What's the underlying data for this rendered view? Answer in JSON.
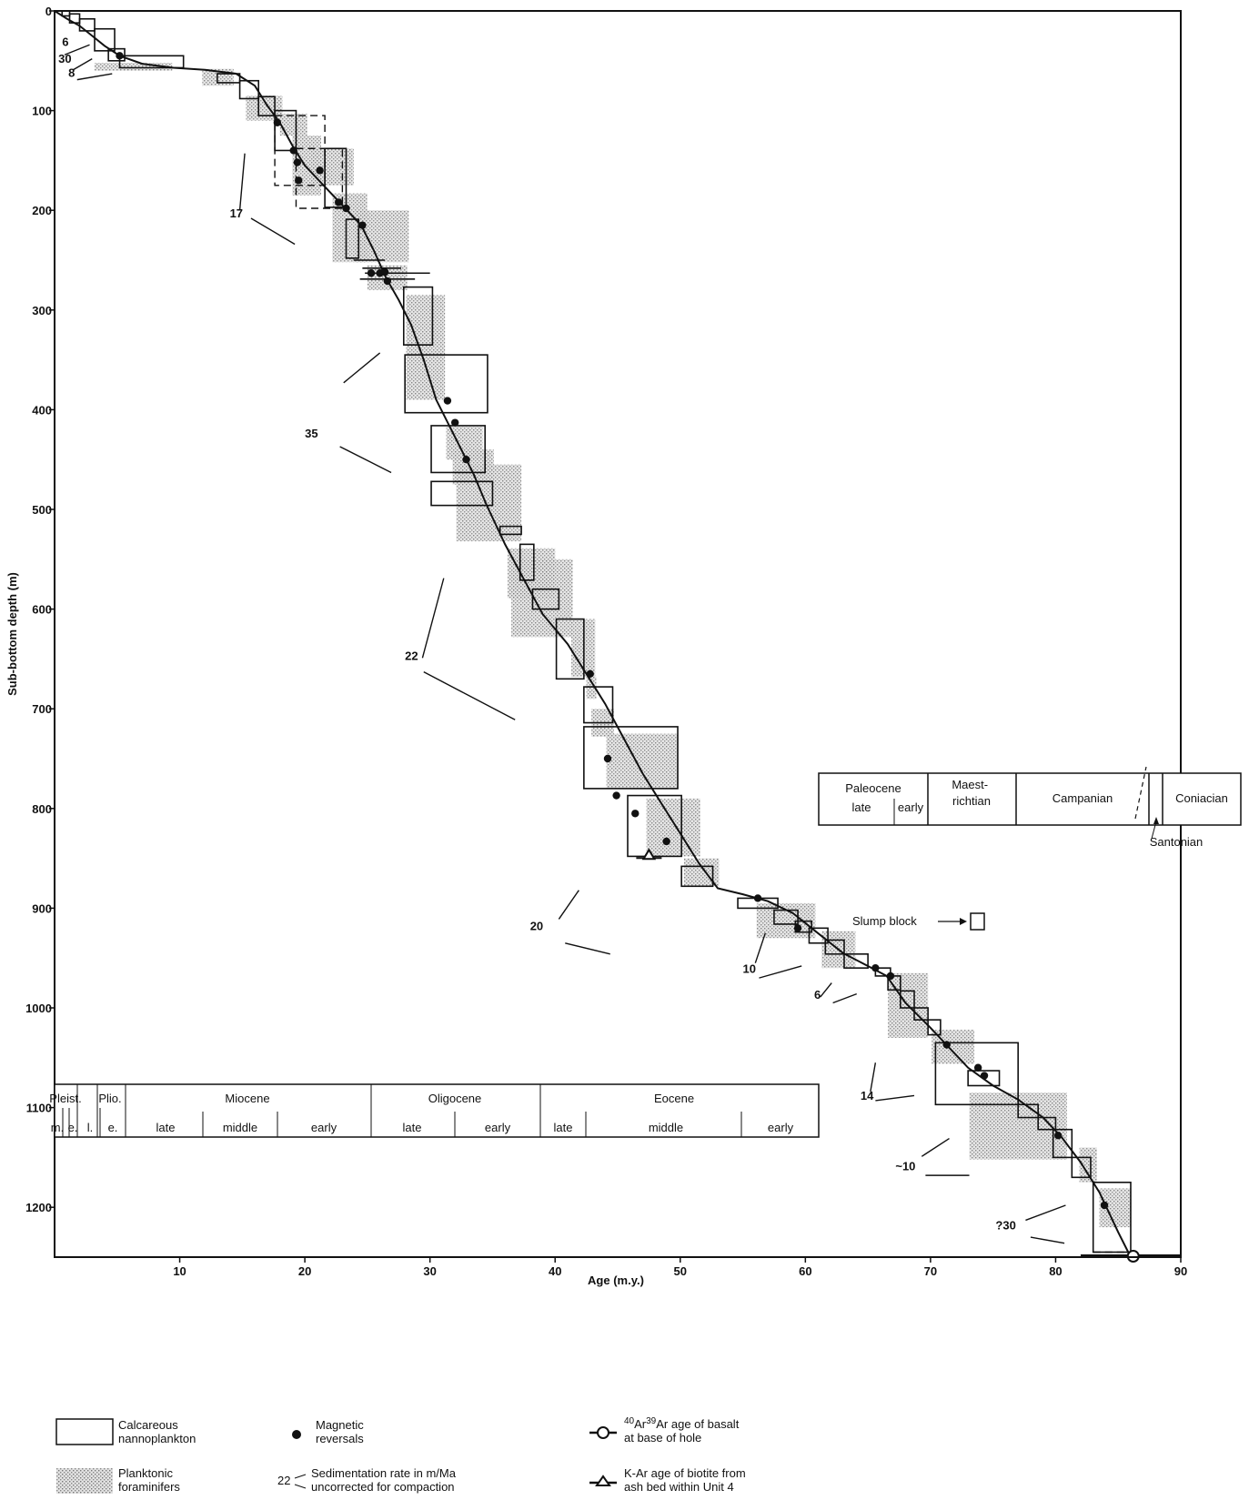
{
  "chart_data": {
    "type": "line",
    "xlabel": "Age (m.y.)",
    "ylabel": "Sub-bottom depth (m)",
    "xlim": [
      0,
      90
    ],
    "ylim": [
      1250,
      0
    ],
    "x_ticks": [
      10,
      20,
      30,
      40,
      50,
      60,
      70,
      80,
      90
    ],
    "y_ticks": [
      0,
      100,
      200,
      300,
      400,
      500,
      600,
      700,
      800,
      900,
      1000,
      1100,
      1200
    ],
    "grid": false,
    "age_depth_curve": [
      [
        0,
        0
      ],
      [
        1,
        8
      ],
      [
        2,
        15
      ],
      [
        3,
        25
      ],
      [
        4,
        35
      ],
      [
        5.2,
        45
      ],
      [
        7,
        53
      ],
      [
        9.5,
        57
      ],
      [
        12,
        59
      ],
      [
        14.5,
        63
      ],
      [
        16,
        75
      ],
      [
        17,
        95
      ],
      [
        18,
        112
      ],
      [
        19,
        135
      ],
      [
        20,
        155
      ],
      [
        21.5,
        175
      ],
      [
        23,
        195
      ],
      [
        24.5,
        215
      ],
      [
        25.5,
        240
      ],
      [
        26.5,
        268
      ],
      [
        27.5,
        290
      ],
      [
        28.5,
        315
      ],
      [
        29.5,
        350
      ],
      [
        30.5,
        390
      ],
      [
        31.5,
        415
      ],
      [
        32.5,
        440
      ],
      [
        33.5,
        465
      ],
      [
        34.5,
        495
      ],
      [
        36,
        535
      ],
      [
        37.5,
        570
      ],
      [
        39,
        605
      ],
      [
        41,
        635
      ],
      [
        42.5,
        665
      ],
      [
        44,
        695
      ],
      [
        45.5,
        730
      ],
      [
        47,
        765
      ],
      [
        48.5,
        795
      ],
      [
        50,
        825
      ],
      [
        51.5,
        855
      ],
      [
        53,
        880
      ],
      [
        55,
        886
      ],
      [
        57,
        893
      ],
      [
        59,
        905
      ],
      [
        61,
        925
      ],
      [
        63,
        945
      ],
      [
        65,
        958
      ],
      [
        66.5,
        968
      ],
      [
        68,
        995
      ],
      [
        70,
        1020
      ],
      [
        71.5,
        1040
      ],
      [
        73,
        1060
      ],
      [
        75,
        1078
      ],
      [
        77,
        1092
      ],
      [
        79,
        1110
      ],
      [
        80.5,
        1130
      ],
      [
        82,
        1155
      ],
      [
        83.5,
        1185
      ],
      [
        85,
        1225
      ],
      [
        86,
        1250
      ]
    ],
    "nannoplankton_boxes": [
      {
        "age": [
          0.6,
          1.2
        ],
        "depth": [
          0,
          5
        ]
      },
      {
        "age": [
          1.2,
          2.0
        ],
        "depth": [
          3,
          12
        ]
      },
      {
        "age": [
          2.0,
          3.2
        ],
        "depth": [
          8,
          20
        ]
      },
      {
        "age": [
          3.2,
          4.8
        ],
        "depth": [
          18,
          40
        ]
      },
      {
        "age": [
          5.2,
          10.3
        ],
        "depth": [
          45,
          57
        ]
      },
      {
        "age": [
          4.3,
          5.6
        ],
        "depth": [
          38,
          50
        ]
      },
      {
        "age": [
          13,
          14.8
        ],
        "depth": [
          63,
          72
        ]
      },
      {
        "age": [
          14.8,
          16.3
        ],
        "depth": [
          70,
          88
        ]
      },
      {
        "age": [
          16.3,
          17.6
        ],
        "depth": [
          86,
          105
        ]
      },
      {
        "age": [
          17.6,
          19.3
        ],
        "depth": [
          100,
          140
        ]
      },
      {
        "age": [
          21.6,
          23.3
        ],
        "depth": [
          138,
          197
        ]
      },
      {
        "age": [
          23.3,
          24.3
        ],
        "depth": [
          209,
          248
        ]
      },
      {
        "age": [
          27.9,
          30.2
        ],
        "depth": [
          277,
          335
        ]
      },
      {
        "age": [
          28,
          34.6
        ],
        "depth": [
          345,
          403
        ]
      },
      {
        "age": [
          30.1,
          34.4
        ],
        "depth": [
          416,
          463
        ]
      },
      {
        "age": [
          30.1,
          35
        ],
        "depth": [
          472,
          496
        ]
      },
      {
        "age": [
          35.6,
          37.3
        ],
        "depth": [
          517,
          525
        ]
      },
      {
        "age": [
          37.2,
          38.3
        ],
        "depth": [
          535,
          571
        ]
      },
      {
        "age": [
          38.2,
          40.3
        ],
        "depth": [
          580,
          600
        ]
      },
      {
        "age": [
          40.1,
          42.3
        ],
        "depth": [
          610,
          670
        ]
      },
      {
        "age": [
          42.3,
          44.6
        ],
        "depth": [
          678,
          714
        ]
      },
      {
        "age": [
          42.3,
          49.8
        ],
        "depth": [
          718,
          780
        ]
      },
      {
        "age": [
          45.8,
          50.1
        ],
        "depth": [
          787,
          848
        ]
      },
      {
        "age": [
          50.1,
          52.6
        ],
        "depth": [
          858,
          878
        ]
      },
      {
        "age": [
          54.6,
          57.8
        ],
        "depth": [
          890,
          900
        ]
      },
      {
        "age": [
          57.5,
          59.4
        ],
        "depth": [
          902,
          916
        ]
      },
      {
        "age": [
          59.2,
          60.5
        ],
        "depth": [
          913,
          924
        ]
      },
      {
        "age": [
          60.3,
          61.8
        ],
        "depth": [
          920,
          935
        ]
      },
      {
        "age": [
          61.6,
          63.1
        ],
        "depth": [
          932,
          946
        ]
      },
      {
        "age": [
          63.1,
          65
        ],
        "depth": [
          946,
          960
        ]
      },
      {
        "age": [
          65.6,
          66.8
        ],
        "depth": [
          960,
          968
        ]
      },
      {
        "age": [
          66.6,
          67.6
        ],
        "depth": [
          968,
          982
        ]
      },
      {
        "age": [
          67.6,
          68.7
        ],
        "depth": [
          983,
          1000
        ]
      },
      {
        "age": [
          68.7,
          69.8
        ],
        "depth": [
          1000,
          1012
        ]
      },
      {
        "age": [
          69.8,
          70.8
        ],
        "depth": [
          1012,
          1027
        ]
      },
      {
        "age": [
          70.4,
          77
        ],
        "depth": [
          1035,
          1097
        ]
      },
      {
        "age": [
          77,
          78.6
        ],
        "depth": [
          1097,
          1110
        ]
      },
      {
        "age": [
          78.6,
          80
        ],
        "depth": [
          1110,
          1122
        ]
      },
      {
        "age": [
          79.8,
          81.3
        ],
        "depth": [
          1122,
          1150
        ]
      },
      {
        "age": [
          81.3,
          82.8
        ],
        "depth": [
          1150,
          1170
        ]
      },
      {
        "age": [
          83.0,
          86.0
        ],
        "depth": [
          1175,
          1245
        ]
      },
      {
        "age": [
          73,
          75.5
        ],
        "depth": [
          1063,
          1078
        ]
      }
    ],
    "dashed_boxes": [
      {
        "age": [
          17.6,
          21.6
        ],
        "depth": [
          105,
          175
        ]
      },
      {
        "age": [
          19.3,
          23.0
        ],
        "depth": [
          138,
          198
        ]
      },
      {
        "age": [
          83.0,
          86.0
        ],
        "depth": [
          1245,
          1245
        ]
      }
    ],
    "foraminifer_boxes": [
      {
        "age": [
          3.2,
          9.4
        ],
        "depth": [
          52,
          60
        ]
      },
      {
        "age": [
          11.8,
          14.3
        ],
        "depth": [
          58,
          75
        ]
      },
      {
        "age": [
          15.3,
          18.2
        ],
        "depth": [
          85,
          110
        ]
      },
      {
        "age": [
          18,
          20.2
        ],
        "depth": [
          103,
          125
        ]
      },
      {
        "age": [
          19,
          21.3
        ],
        "depth": [
          125,
          185
        ]
      },
      {
        "age": [
          20.5,
          23.9
        ],
        "depth": [
          138,
          175
        ]
      },
      {
        "age": [
          22.2,
          25
        ],
        "depth": [
          183,
          252
        ]
      },
      {
        "age": [
          24,
          28.3
        ],
        "depth": [
          200,
          252
        ]
      },
      {
        "age": [
          25,
          28.2
        ],
        "depth": [
          255,
          280
        ]
      },
      {
        "age": [
          28.1,
          31.2
        ],
        "depth": [
          285,
          390
        ]
      },
      {
        "age": [
          31.3,
          34.2
        ],
        "depth": [
          417,
          450
        ]
      },
      {
        "age": [
          31.8,
          35.1
        ],
        "depth": [
          440,
          475
        ]
      },
      {
        "age": [
          32.1,
          37.3
        ],
        "depth": [
          455,
          532
        ]
      },
      {
        "age": [
          36.2,
          40
        ],
        "depth": [
          539,
          589
        ]
      },
      {
        "age": [
          36.5,
          41.4
        ],
        "depth": [
          550,
          628
        ]
      },
      {
        "age": [
          41.3,
          43.2
        ],
        "depth": [
          610,
          668
        ]
      },
      {
        "age": [
          42.5,
          43.3
        ],
        "depth": [
          668,
          690
        ]
      },
      {
        "age": [
          42.9,
          44.7
        ],
        "depth": [
          700,
          728
        ]
      },
      {
        "age": [
          44.1,
          49.8
        ],
        "depth": [
          725,
          780
        ]
      },
      {
        "age": [
          47.3,
          51.6
        ],
        "depth": [
          790,
          848
        ]
      },
      {
        "age": [
          50.3,
          53.1
        ],
        "depth": [
          850,
          878
        ]
      },
      {
        "age": [
          56.1,
          60.8
        ],
        "depth": [
          895,
          930
        ]
      },
      {
        "age": [
          61.3,
          64
        ],
        "depth": [
          923,
          960
        ]
      },
      {
        "age": [
          66.6,
          69.8
        ],
        "depth": [
          965,
          1030
        ]
      },
      {
        "age": [
          70.1,
          73.5
        ],
        "depth": [
          1022,
          1056
        ]
      },
      {
        "age": [
          73.1,
          80.9
        ],
        "depth": [
          1085,
          1152
        ]
      },
      {
        "age": [
          81.9,
          83.3
        ],
        "depth": [
          1140,
          1175
        ]
      },
      {
        "age": [
          83.5,
          86
        ],
        "depth": [
          1181,
          1220
        ]
      }
    ],
    "magnetic_reversals": [
      [
        5.2,
        45
      ],
      [
        17.8,
        112
      ],
      [
        19.1,
        140
      ],
      [
        19.4,
        152
      ],
      [
        19.5,
        170
      ],
      [
        21.2,
        160
      ],
      [
        22.7,
        192
      ],
      [
        23.3,
        198
      ],
      [
        24.6,
        215
      ],
      [
        25.3,
        263
      ],
      [
        26,
        263
      ],
      [
        26.4,
        262
      ],
      [
        26.6,
        271
      ],
      [
        31.4,
        391
      ],
      [
        32,
        413
      ],
      [
        32.9,
        450
      ],
      [
        42.8,
        665
      ],
      [
        44.2,
        750
      ],
      [
        44.9,
        787
      ],
      [
        46.4,
        805
      ],
      [
        48.9,
        833
      ],
      [
        56.2,
        890
      ],
      [
        59.4,
        920
      ],
      [
        65.6,
        960
      ],
      [
        66.8,
        968
      ],
      [
        71.3,
        1037
      ],
      [
        73.8,
        1060
      ],
      [
        74.3,
        1068
      ],
      [
        80.2,
        1128
      ],
      [
        83.9,
        1198
      ]
    ],
    "ar_ar_basalt": [
      86.2,
      1250
    ],
    "k_ar_biotite": [
      47.5,
      847
    ],
    "hiatus_lines": [
      {
        "age": [
          23.9,
          26.4
        ],
        "depth": 250
      },
      {
        "age": [
          24.6,
          27.7
        ],
        "depth": 258
      },
      {
        "age": [
          24.8,
          30
        ],
        "depth": 263
      },
      {
        "age": [
          24.4,
          28.8
        ],
        "depth": 269
      }
    ],
    "sed_rate_labels": [
      {
        "text": "6",
        "age": 0.6,
        "depth": 35
      },
      {
        "text": "30",
        "age": 0.3,
        "depth": 52
      },
      {
        "text": "8",
        "age": 1.1,
        "depth": 66
      },
      {
        "text": "17",
        "age": 14,
        "depth": 207
      },
      {
        "text": "35",
        "age": 20,
        "depth": 428
      },
      {
        "text": "22",
        "age": 28,
        "depth": 651
      },
      {
        "text": "20",
        "age": 38,
        "depth": 922
      },
      {
        "text": "10",
        "age": 55,
        "depth": 965
      },
      {
        "text": "6",
        "age": 60.7,
        "depth": 991
      },
      {
        "text": "14",
        "age": 64.4,
        "depth": 1092
      },
      {
        "text": "~10",
        "age": 67.2,
        "depth": 1163
      },
      {
        "text": "?30",
        "age": 75.2,
        "depth": 1222
      }
    ],
    "sed_rate_ticks": [
      {
        "age": [
          0.8,
          2.8
        ],
        "depth": [
          44,
          34
        ]
      },
      {
        "age": [
          1.5,
          3.0
        ],
        "depth": [
          59,
          48
        ]
      },
      {
        "age": [
          1.8,
          4.6
        ],
        "depth": [
          69,
          63
        ]
      },
      {
        "age": [
          14.8,
          15.2
        ],
        "depth": [
          200,
          143
        ]
      },
      {
        "age": [
          15.7,
          19.2
        ],
        "depth": [
          208,
          234
        ]
      },
      {
        "age": [
          23.1,
          26
        ],
        "depth": [
          373,
          343
        ]
      },
      {
        "age": [
          22.8,
          26.9
        ],
        "depth": [
          437,
          463
        ]
      },
      {
        "age": [
          29.4,
          31.1
        ],
        "depth": [
          649,
          569
        ]
      },
      {
        "age": [
          29.5,
          36.8
        ],
        "depth": [
          663,
          711
        ]
      },
      {
        "age": [
          40.3,
          41.9
        ],
        "depth": [
          911,
          882
        ]
      },
      {
        "age": [
          40.8,
          44.4
        ],
        "depth": [
          935,
          946
        ]
      },
      {
        "age": [
          56,
          56.8
        ],
        "depth": [
          955,
          925
        ]
      },
      {
        "age": [
          56.3,
          59.7
        ],
        "depth": [
          970,
          958
        ]
      },
      {
        "age": [
          61.2,
          62.1
        ],
        "depth": [
          989,
          975
        ]
      },
      {
        "age": [
          62.2,
          64.1
        ],
        "depth": [
          995,
          986
        ]
      },
      {
        "age": [
          65.2,
          65.6
        ],
        "depth": [
          1084,
          1055
        ]
      },
      {
        "age": [
          65.6,
          68.7
        ],
        "depth": [
          1093,
          1088
        ]
      },
      {
        "age": [
          69.3,
          71.5
        ],
        "depth": [
          1149,
          1131
        ]
      },
      {
        "age": [
          69.6,
          73.1
        ],
        "depth": [
          1168,
          1168
        ]
      },
      {
        "age": [
          77.6,
          80.8
        ],
        "depth": [
          1213,
          1198
        ]
      },
      {
        "age": [
          78,
          80.7
        ],
        "depth": [
          1230,
          1236
        ]
      }
    ]
  },
  "upper_strat": {
    "epochs": [
      "Paleocene",
      "Maest-richtian",
      "Campanian",
      "Coniacian"
    ],
    "subdivisions": [
      "late",
      "early"
    ],
    "santonian": "Santonian"
  },
  "lower_strat": {
    "epochs": [
      "Pleist.",
      "Plio.",
      "Miocene",
      "Oligocene",
      "Eocene"
    ],
    "subdivisions": [
      "m.",
      "e.",
      "l.",
      "e.",
      "late",
      "middle",
      "early",
      "late",
      "early",
      "late",
      "middle",
      "early"
    ]
  },
  "slump_block": "Slump block",
  "legend": {
    "nanno": [
      "Calcareous",
      "nannoplankton"
    ],
    "forams": [
      "Planktonic",
      "foraminifers"
    ],
    "reversals": [
      "Magnetic",
      "reversals"
    ],
    "sedrate_num": "22",
    "sedrate": [
      "Sedimentation rate in m/Ma",
      "uncorrected for compaction"
    ],
    "basalt_sup1": "40",
    "basalt_ar": "Ar",
    "basalt_sup2": "39",
    "basalt_rest": "Ar age of basalt",
    "basalt_line2": "at base of hole",
    "kar": [
      "K-Ar age of biotite from",
      "ash bed within Unit 4"
    ]
  }
}
